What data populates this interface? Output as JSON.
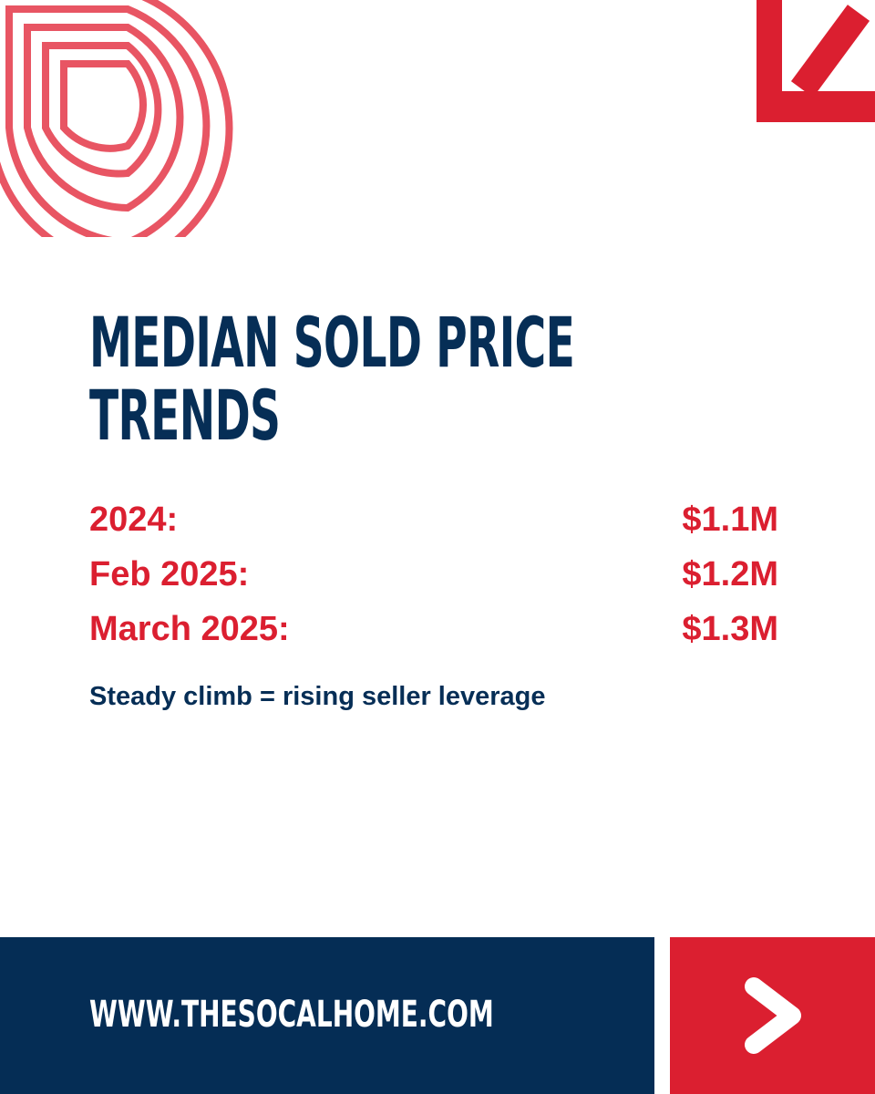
{
  "headline": {
    "line1": "MEDIAN SOLD PRICE",
    "line2": "TRENDS"
  },
  "stats": [
    {
      "label": "2024:",
      "value": "$1.1M"
    },
    {
      "label": "Feb 2025:",
      "value": "$1.2M"
    },
    {
      "label": "March 2025:",
      "value": "$1.3M"
    }
  ],
  "subtitle": "Steady climb = rising seller leverage",
  "footer": {
    "url": "WWW.THESOCALHOME.COM"
  },
  "colors": {
    "navy": "#052d55",
    "red": "#db1f30",
    "ring": "#e85563",
    "background": "#ffffff"
  },
  "icons": {
    "rings": "concentric-rings-icon",
    "corner": "arrow-down-left-icon",
    "next": "chevron-right-icon"
  }
}
